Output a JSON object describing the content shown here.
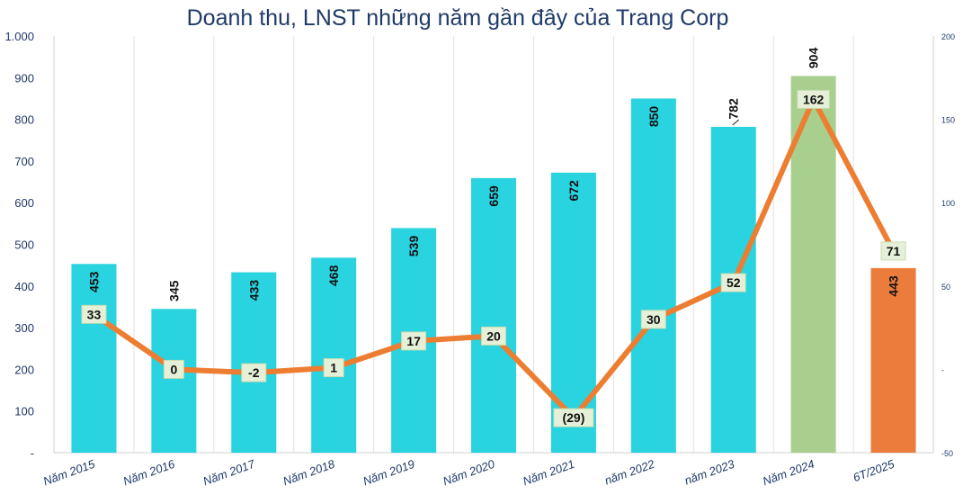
{
  "chart_data": {
    "type": "bar+line",
    "title": "Doanh thu, LNST những năm gần đây của Trang Corp",
    "categories": [
      "Năm 2015",
      "Năm 2016",
      "Năm 2017",
      "Năm 2018",
      "Năm 2019",
      "Năm 2020",
      "Năm 2021",
      "năm 2022",
      "năm 2023",
      "Năm 2024",
      "6T/2025"
    ],
    "series": [
      {
        "name": "Doanh thu",
        "kind": "bar",
        "axis": "left",
        "values": [
          453,
          345,
          433,
          468,
          539,
          659,
          672,
          850,
          782,
          904,
          443
        ],
        "labels": [
          "453",
          "345",
          "433",
          "468",
          "539",
          "659",
          "672",
          "850",
          "782",
          "904",
          "443"
        ],
        "colors": [
          "#29d3df",
          "#29d3df",
          "#29d3df",
          "#29d3df",
          "#29d3df",
          "#29d3df",
          "#29d3df",
          "#29d3df",
          "#29d3df",
          "#a8cf8e",
          "#ec7c3c"
        ]
      },
      {
        "name": "LNST",
        "kind": "line",
        "axis": "right",
        "color": "#ed7d31",
        "values": [
          33,
          0,
          -2,
          1,
          17,
          20,
          -29,
          30,
          52,
          162,
          71
        ],
        "labels": [
          "33",
          "0",
          "-2",
          "1",
          "17",
          "20",
          "(29)",
          "30",
          "52",
          "162",
          "71"
        ]
      }
    ],
    "y_left": {
      "min": 0,
      "max": 1000,
      "ticks": [
        0,
        100,
        200,
        300,
        400,
        500,
        600,
        700,
        800,
        900,
        1000
      ],
      "tick_labels": [
        "-",
        "100",
        "200",
        "300",
        "400",
        "500",
        "600",
        "700",
        "800",
        "900",
        "1.000"
      ]
    },
    "y_right": {
      "min": -50,
      "max": 200,
      "ticks": [
        -50,
        0,
        50,
        100,
        150,
        200
      ],
      "tick_labels": [
        "-50",
        "-",
        "50",
        "100",
        "150",
        "200"
      ]
    },
    "grid": "vertical"
  }
}
